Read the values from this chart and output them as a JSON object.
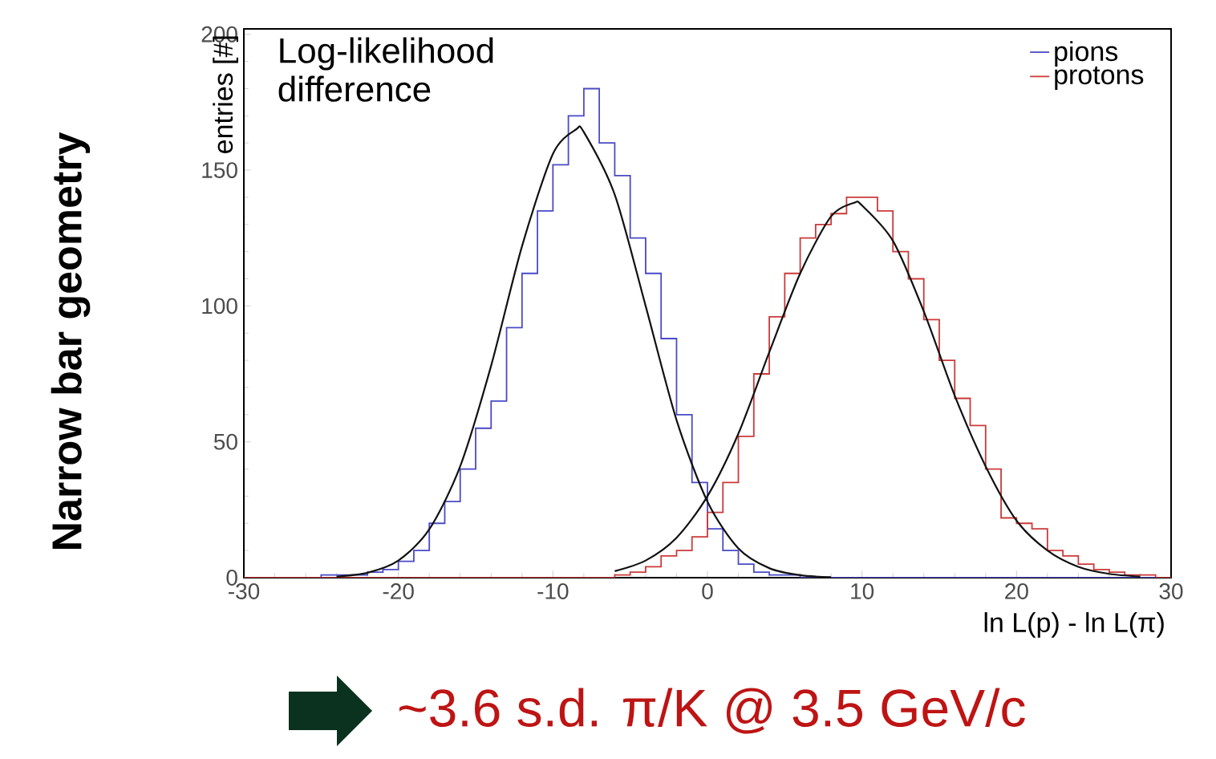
{
  "chart_data": {
    "type": "histogram",
    "xlabel": "ln L(p) - ln L(π)",
    "ylabel": "entries [#]",
    "annotations": [
      "Log-likelihood difference",
      "Narrow bar geometry",
      "~3.6 s.d. π/K @ 3.5 GeV/c"
    ],
    "bins": [
      -30,
      -29,
      -28,
      -27,
      -26,
      -25,
      -24,
      -23,
      -22,
      -21,
      -20,
      -19,
      -18,
      -17,
      -16,
      -15,
      -14,
      -13,
      -12,
      -11,
      -10,
      -9,
      -8,
      -7,
      -6,
      -5,
      -4,
      -3,
      -2,
      -1,
      0,
      1,
      2,
      3,
      4,
      5,
      6,
      7,
      8,
      9,
      10,
      11,
      12,
      13,
      14,
      15,
      16,
      17,
      18,
      19,
      20,
      21,
      22,
      23,
      24,
      25,
      26,
      27,
      28,
      29,
      30
    ],
    "xlim": [
      -30,
      30
    ],
    "ylim": [
      0,
      202
    ],
    "xticks": [
      -30,
      -20,
      -10,
      0,
      10,
      20,
      30
    ],
    "yticks": [
      0,
      50,
      100,
      150,
      200
    ],
    "legend": "top right",
    "series": [
      {
        "name": "pions",
        "color": "#4a4ac8",
        "values": [
          0,
          0,
          0,
          0,
          0,
          1,
          1,
          1,
          2,
          3,
          6,
          10,
          20,
          28,
          40,
          55,
          65,
          92,
          112,
          135,
          152,
          170,
          180,
          160,
          148,
          125,
          112,
          88,
          60,
          35,
          18,
          10,
          5,
          2,
          1,
          1,
          0,
          0,
          0,
          0,
          0,
          0,
          0,
          0,
          0,
          0,
          0,
          0,
          0,
          0,
          0,
          0,
          0,
          0,
          0,
          0,
          0,
          0,
          0,
          0
        ]
      },
      {
        "name": "protons",
        "color": "#cc3a3a",
        "values": [
          0,
          0,
          0,
          0,
          0,
          0,
          0,
          0,
          0,
          0,
          0,
          0,
          0,
          0,
          0,
          0,
          0,
          0,
          0,
          0,
          0,
          0,
          0,
          0,
          1,
          2,
          4,
          8,
          10,
          15,
          24,
          35,
          52,
          75,
          96,
          112,
          125,
          130,
          134,
          140,
          140,
          135,
          120,
          110,
          95,
          80,
          66,
          56,
          40,
          22,
          20,
          18,
          10,
          8,
          5,
          3,
          2,
          1,
          1,
          0
        ]
      },
      {
        "type": "line",
        "color": "#111111",
        "x": [
          -24,
          -22,
          -20,
          -18,
          -16,
          -14,
          -12,
          -10,
          -8.5,
          -8,
          -6,
          -4,
          -2,
          0,
          2,
          4,
          6,
          8
        ],
        "values": [
          0.4,
          1.8,
          6.3,
          17.8,
          41,
          78,
          122,
          156,
          165,
          164,
          141,
          100,
          58,
          28,
          10.8,
          3.5,
          0.9,
          0.2
        ]
      },
      {
        "type": "line",
        "color": "#111111",
        "x": [
          -6,
          -4,
          -2,
          0,
          2,
          4,
          6,
          8,
          9.5,
          10,
          12,
          14,
          16,
          18,
          20,
          22,
          24,
          26,
          28
        ],
        "values": [
          2.4,
          6.3,
          14.7,
          30,
          53,
          83,
          112,
          133,
          138,
          137,
          124,
          98,
          67,
          41,
          21,
          10,
          4,
          1.4,
          0.4
        ]
      }
    ]
  }
}
